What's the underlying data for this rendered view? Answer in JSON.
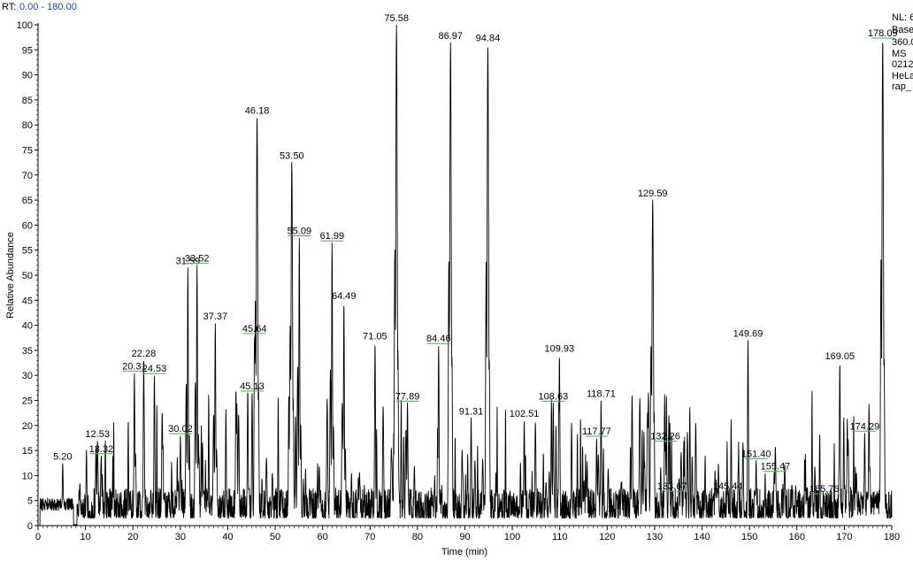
{
  "header": {
    "rt_label": "RT:",
    "rt_range": "0.00 - 180.00"
  },
  "side_info": [
    "NL: 6",
    "Base",
    "360.0",
    "MS",
    "0212",
    "HeLa",
    "rap_"
  ],
  "colors": {
    "trace": "#000000",
    "label_marker": "#4caf50",
    "rt_range": "#1f3fbf"
  },
  "chart_data": {
    "type": "line",
    "title": "",
    "xlabel": "Time (min)",
    "ylabel": "Relative Abundance",
    "xlim": [
      0,
      180
    ],
    "ylim": [
      0,
      100
    ],
    "xticks": [
      0,
      10,
      20,
      30,
      40,
      50,
      60,
      70,
      80,
      90,
      100,
      110,
      120,
      130,
      140,
      150,
      160,
      170,
      180
    ],
    "yticks": [
      0,
      5,
      10,
      15,
      20,
      25,
      30,
      35,
      40,
      45,
      50,
      55,
      60,
      65,
      70,
      75,
      80,
      85,
      90,
      95,
      100
    ],
    "grid": false,
    "peaks": [
      {
        "label": "5.20",
        "x": 5.2,
        "y": 12.5,
        "marker": false
      },
      {
        "label": "12.53",
        "x": 12.53,
        "y": 17.0,
        "marker": false
      },
      {
        "label": "13.32",
        "x": 13.32,
        "y": 14.0,
        "marker": true
      },
      {
        "label": "20.31",
        "x": 20.31,
        "y": 30.5,
        "marker": true
      },
      {
        "label": "22.28",
        "x": 22.28,
        "y": 33.0,
        "marker": false
      },
      {
        "label": "24.53",
        "x": 24.53,
        "y": 30.0,
        "marker": true
      },
      {
        "label": "30.02",
        "x": 30.02,
        "y": 18.0,
        "marker": true
      },
      {
        "label": "31.59",
        "x": 31.59,
        "y": 51.5,
        "marker": false
      },
      {
        "label": "33.52",
        "x": 33.52,
        "y": 52.0,
        "marker": true
      },
      {
        "label": "37.37",
        "x": 37.37,
        "y": 40.5,
        "marker": false
      },
      {
        "label": "45.13",
        "x": 45.13,
        "y": 26.5,
        "marker": true
      },
      {
        "label": "45.64",
        "x": 45.64,
        "y": 38.0,
        "marker": true
      },
      {
        "label": "46.18",
        "x": 46.18,
        "y": 81.5,
        "marker": false
      },
      {
        "label": "53.50",
        "x": 53.5,
        "y": 72.5,
        "marker": false
      },
      {
        "label": "55.09",
        "x": 55.09,
        "y": 57.5,
        "marker": true
      },
      {
        "label": "61.99",
        "x": 61.99,
        "y": 56.5,
        "marker": true
      },
      {
        "label": "64.49",
        "x": 64.49,
        "y": 44.5,
        "marker": false
      },
      {
        "label": "71.05",
        "x": 71.05,
        "y": 36.5,
        "marker": false
      },
      {
        "label": "75.58",
        "x": 75.58,
        "y": 100.0,
        "marker": false
      },
      {
        "label": "77.89",
        "x": 77.89,
        "y": 24.5,
        "marker": true
      },
      {
        "label": "84.46",
        "x": 84.46,
        "y": 36.0,
        "marker": true
      },
      {
        "label": "86.97",
        "x": 86.97,
        "y": 96.5,
        "marker": false
      },
      {
        "label": "91.31",
        "x": 91.31,
        "y": 21.5,
        "marker": false
      },
      {
        "label": "94.84",
        "x": 94.84,
        "y": 96.0,
        "marker": false
      },
      {
        "label": "102.51",
        "x": 102.51,
        "y": 21.0,
        "marker": false
      },
      {
        "label": "108.63",
        "x": 108.63,
        "y": 24.5,
        "marker": true
      },
      {
        "label": "109.93",
        "x": 109.93,
        "y": 34.0,
        "marker": false
      },
      {
        "label": "117.77",
        "x": 117.77,
        "y": 17.5,
        "marker": true
      },
      {
        "label": "118.71",
        "x": 118.71,
        "y": 25.0,
        "marker": false
      },
      {
        "label": "129.59",
        "x": 129.59,
        "y": 65.0,
        "marker": false
      },
      {
        "label": "132.26",
        "x": 132.26,
        "y": 16.5,
        "marker": true
      },
      {
        "label": "133.67",
        "x": 133.67,
        "y": 6.5,
        "marker": true
      },
      {
        "label": "145.44",
        "x": 145.44,
        "y": 6.5,
        "marker": false
      },
      {
        "label": "149.69",
        "x": 149.69,
        "y": 37.0,
        "marker": false
      },
      {
        "label": "151.40",
        "x": 151.4,
        "y": 13.0,
        "marker": true
      },
      {
        "label": "155.47",
        "x": 155.47,
        "y": 10.5,
        "marker": true
      },
      {
        "label": "165.76",
        "x": 165.76,
        "y": 6.0,
        "marker": true
      },
      {
        "label": "169.05",
        "x": 169.05,
        "y": 32.5,
        "marker": false
      },
      {
        "label": "174.29",
        "x": 174.29,
        "y": 18.5,
        "marker": true
      },
      {
        "label": "178.09",
        "x": 178.09,
        "y": 97.0,
        "marker": true
      }
    ]
  }
}
